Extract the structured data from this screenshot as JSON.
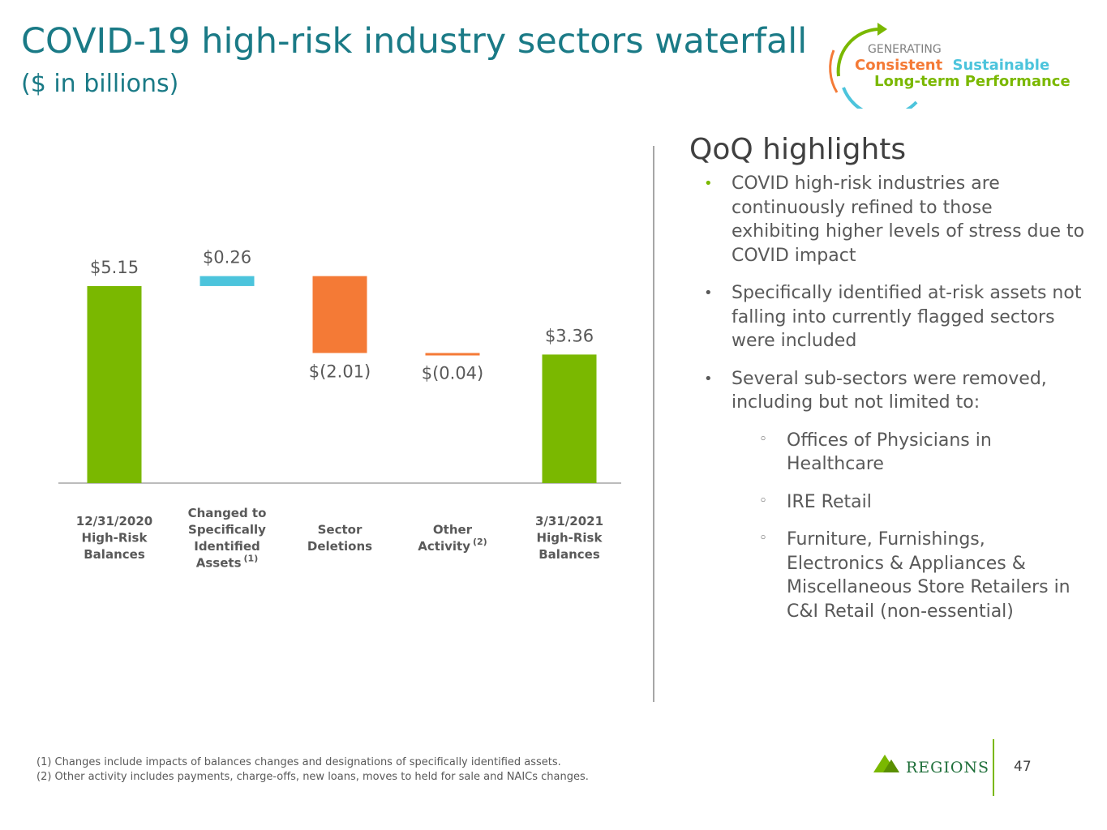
{
  "title": "COVID-19 high-risk industry sectors waterfall",
  "subtitle": "($ in billions)",
  "badge": {
    "line1": "GENERATING",
    "word1": "Consistent",
    "word2": "Sustainable",
    "line3": "Long-term Performance",
    "colors": {
      "green": "#7ab800",
      "teal": "#4cc4dc",
      "gray": "#7f7f7f",
      "orange": "#f47a36"
    }
  },
  "chart_data": {
    "type": "waterfall",
    "title": "",
    "ylim": [
      0,
      6
    ],
    "steps": [
      {
        "kind": "total",
        "value": 5.15,
        "label": "$5.15",
        "lines": [
          "12/31/2020",
          "High-Risk",
          "Balances"
        ],
        "color": "#7ab800"
      },
      {
        "kind": "delta",
        "value": 0.26,
        "label": "$0.26",
        "lines": [
          "Changed to",
          "Specifically",
          "Identified",
          "Assets"
        ],
        "sup": "(1)",
        "color": "#4cc4dc"
      },
      {
        "kind": "delta",
        "value": -2.01,
        "label": "$(2.01)",
        "lines": [
          "Sector",
          "Deletions"
        ],
        "color": "#f47a36"
      },
      {
        "kind": "delta",
        "value": -0.04,
        "label": "$(0.04)",
        "lines": [
          "Other",
          "Activity"
        ],
        "sup": "(2)",
        "color": "#f47a36"
      },
      {
        "kind": "total",
        "value": 3.36,
        "label": "$3.36",
        "lines": [
          "3/31/2021",
          "High-Risk",
          "Balances"
        ],
        "color": "#7ab800"
      }
    ]
  },
  "highlights": {
    "title": "QoQ highlights",
    "bullets": [
      "COVID high-risk industries are continuously refined to those exhibiting higher levels of stress due to COVID impact",
      "Specifically identified at-risk assets not falling into currently flagged sectors were included",
      "Several sub-sectors were removed, including but not limited to:"
    ],
    "sub_bullets": [
      "Offices of Physicians in Healthcare",
      "IRE Retail",
      "Furniture, Furnishings, Electronics & Appliances & Miscellaneous Store Retailers in C&I Retail (non-essential)"
    ]
  },
  "footnotes": [
    "(1) Changes include impacts of balances changes and designations of specifically identified assets.",
    "(2) Other activity includes payments, charge-offs, new loans, moves to held for sale and NAICs changes."
  ],
  "brand": {
    "name": "REGIONS"
  },
  "page_number": "47"
}
